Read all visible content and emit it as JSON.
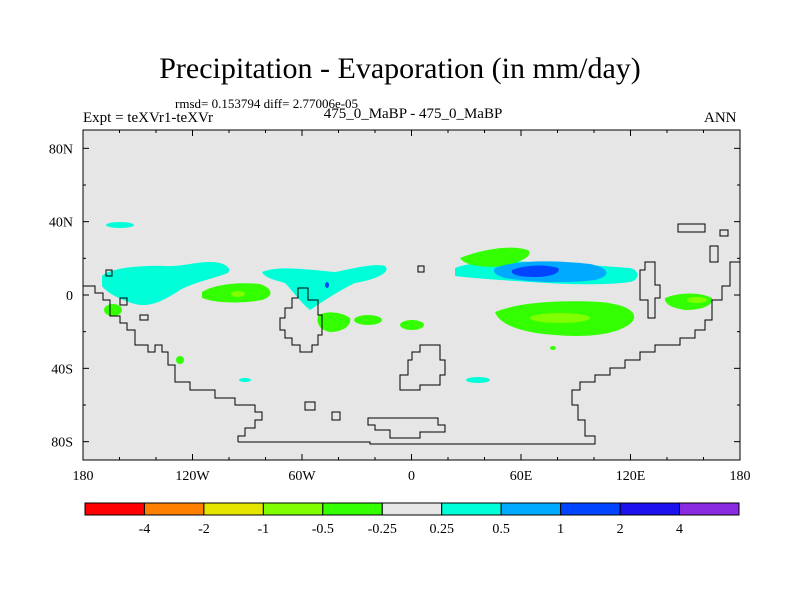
{
  "title": "Precipitation - Evaporation (in mm/day)",
  "stats": "rmsd= 0.153794  diff= 2.77006e-05",
  "experiment": "Expt = teXVr1-teXVr",
  "case": "475_0_MaBP - 475_0_MaBP",
  "season": "ANN",
  "map": {
    "background_color": "#e6e6e6",
    "lon_range": [
      -180,
      180
    ],
    "lat_range": [
      -90,
      90
    ],
    "x_ticks": [
      {
        "lon": -180,
        "label": "180"
      },
      {
        "lon": -120,
        "label": "120W"
      },
      {
        "lon": -60,
        "label": "60W"
      },
      {
        "lon": 0,
        "label": "0"
      },
      {
        "lon": 60,
        "label": "60E"
      },
      {
        "lon": 120,
        "label": "120E"
      },
      {
        "lon": 180,
        "label": "180"
      }
    ],
    "y_ticks": [
      {
        "lat": 80,
        "label": "80N"
      },
      {
        "lat": 40,
        "label": "40N"
      },
      {
        "lat": 0,
        "label": "0"
      },
      {
        "lat": -40,
        "label": "40S"
      },
      {
        "lat": -80,
        "label": "80S"
      }
    ]
  },
  "colorbar": {
    "colors": [
      "#ff0000",
      "#ff7f00",
      "#e5e500",
      "#7fff00",
      "#33ff00",
      "#e6e6e6",
      "#00ffd9",
      "#00aaff",
      "#0044ff",
      "#1c10ee",
      "#8a2be2"
    ],
    "labels": [
      "-4",
      "-2",
      "-1",
      "-0.5",
      "-0.25",
      "0.25",
      "0.5",
      "1",
      "2",
      "4"
    ]
  }
}
